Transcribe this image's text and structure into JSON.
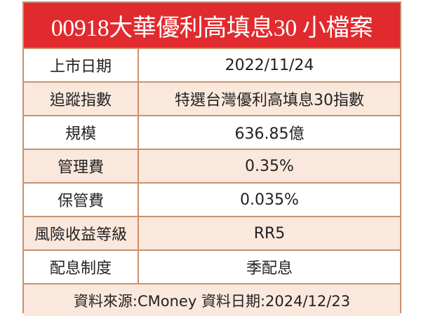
{
  "header": {
    "title": "00918大華優利高填息30 小檔案"
  },
  "table": {
    "rows": [
      [
        "上市日期",
        "2022/11/24"
      ],
      [
        "追蹤指數",
        "特選台灣優利高填息30指數"
      ],
      [
        "規模",
        "636.85億"
      ],
      [
        "管理費",
        "0.35%"
      ],
      [
        "保管費",
        "0.035%"
      ],
      [
        "風險收益等級",
        "RR5"
      ],
      [
        "配息制度",
        "季配息"
      ]
    ]
  },
  "footer": "資料來源:CMoney 資料日期:2024/12/23"
}
